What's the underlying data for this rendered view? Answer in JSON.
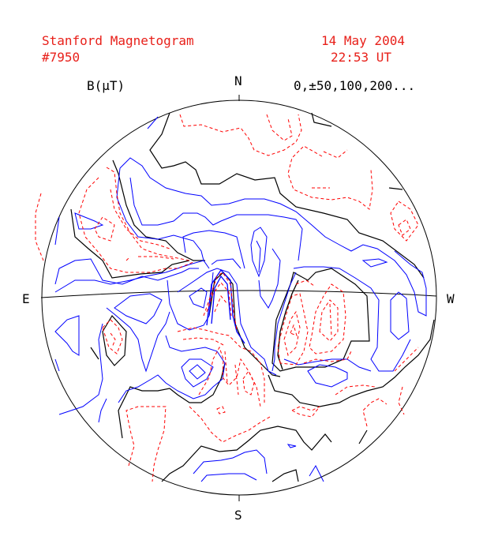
{
  "header": {
    "title": "Stanford Magnetogram",
    "number": "#7950",
    "date": "14 May  2004",
    "time": "22:53 UT"
  },
  "colors": {
    "positive": "#0000ff",
    "negative": "#ff0000",
    "neutral": "#000000",
    "header_text": "#e8201a"
  },
  "chart_data": {
    "type": "contour",
    "title": "Stanford Magnetogram",
    "units_label": "B(μT)",
    "contour_levels_label": "0,±50,100,200...",
    "contour_levels": [
      0,
      50,
      100,
      200
    ],
    "compass": {
      "north": "N",
      "south": "S",
      "east": "E",
      "west": "W"
    },
    "series": [
      {
        "name": "positive",
        "style": "solid"
      },
      {
        "name": "negative",
        "style": "dashed"
      },
      {
        "name": "neutral",
        "style": "solid"
      }
    ]
  }
}
